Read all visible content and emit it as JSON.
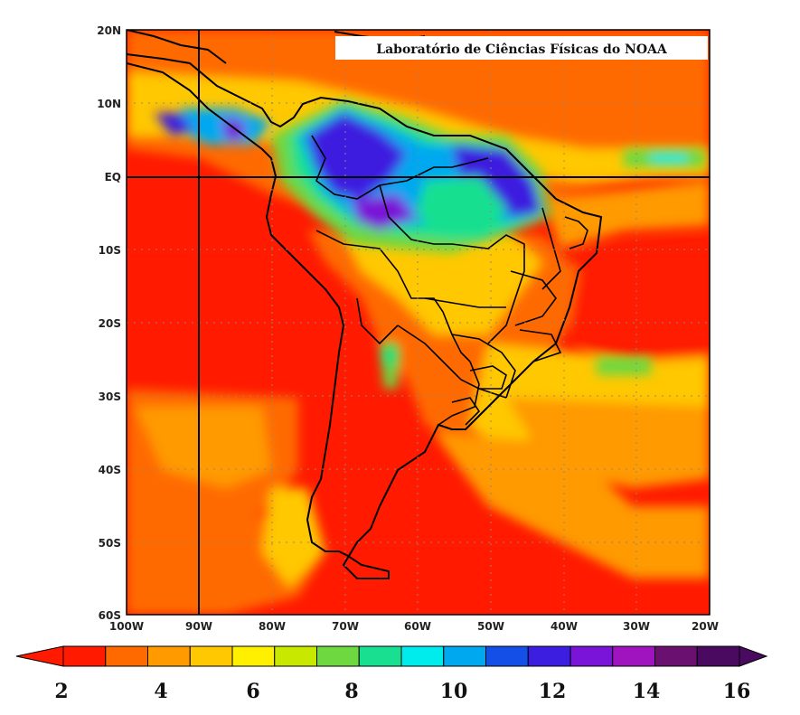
{
  "map": {
    "title": "Laboratório de Ciências Físicas do NOAA",
    "lat_labels": [
      "20N",
      "10N",
      "EQ",
      "10S",
      "20S",
      "30S",
      "40S",
      "50S",
      "60S"
    ],
    "lon_labels": [
      "100W",
      "90W",
      "80W",
      "70W",
      "60W",
      "50W",
      "40W",
      "30W",
      "20W"
    ],
    "colorbar": {
      "labels": [
        "2",
        "4",
        "6",
        "8",
        "10",
        "12",
        "14",
        "16"
      ],
      "colors": [
        "#ff1a00",
        "#ff6a00",
        "#ff9a00",
        "#ffc800",
        "#fff000",
        "#c8e800",
        "#6ed840",
        "#19e090",
        "#00ecec",
        "#00a8f0",
        "#1450e8",
        "#3c1ee0",
        "#7a14d8",
        "#a014c0",
        "#6a1070",
        "#4a0a60"
      ]
    },
    "colors": {
      "low": "#ff1a00",
      "medium": "#ffc800",
      "high": "#3c1ee0",
      "outline": "#000000"
    }
  }
}
